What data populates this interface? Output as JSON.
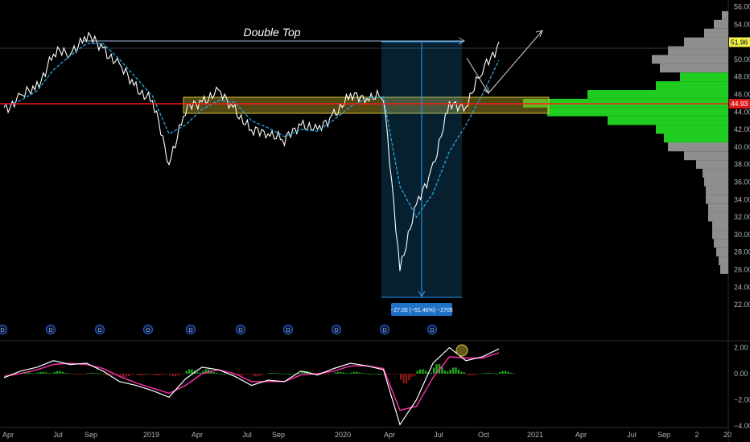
{
  "chart_data": [
    {
      "type": "line",
      "title": "",
      "annotation_title": "Double Top",
      "colors": {
        "price": "#ffffff",
        "moving_average": "#2aa7e0",
        "support_line": "#ff1a1a",
        "resistance_zone": "#b5a22a",
        "measure_box": "#1e90d6",
        "volume_up": "#22dd22",
        "volume_down": "#9a9a9a"
      },
      "x_ticks": [
        "Apr",
        "Jul",
        "Sep",
        "2019",
        "Apr",
        "Jul",
        "Sep",
        "2020",
        "Apr",
        "Jul",
        "Oct",
        "2021",
        "Apr",
        "Jul",
        "Sep",
        "2",
        "20"
      ],
      "y_ticks": [
        "56.00",
        "54.00",
        "52.00",
        "50.00",
        "48.00",
        "46.00",
        "44.00",
        "42.00",
        "40.00",
        "38.00",
        "36.00",
        "34.00",
        "32.00",
        "30.00",
        "28.00",
        "26.00",
        "24.00",
        "22.00"
      ],
      "ylim": [
        21,
        57
      ],
      "x": [
        "2018-03",
        "2018-04",
        "2018-05",
        "2018-06",
        "2018-07",
        "2018-08",
        "2018-09",
        "2018-10",
        "2018-11",
        "2018-12",
        "2019-01",
        "2019-02",
        "2019-03",
        "2019-04",
        "2019-05",
        "2019-06",
        "2019-07",
        "2019-08",
        "2019-09",
        "2019-10",
        "2019-11",
        "2019-12",
        "2020-01",
        "2020-02",
        "2020-03",
        "2020-04",
        "2020-05",
        "2020-06",
        "2020-07",
        "2020-08",
        "2020-09"
      ],
      "series": [
        {
          "values": [
            44.5,
            45.5,
            47,
            50.5,
            51,
            52.5,
            51.5,
            49,
            47,
            45,
            38.5,
            44,
            45.5,
            46,
            44.5,
            41.5,
            42,
            40.5,
            43,
            41.5,
            44,
            45.5,
            46,
            45.5,
            26.5,
            33,
            38,
            44.5,
            45,
            48.5,
            52
          ]
        },
        {
          "values": [
            44.7,
            45.3,
            46.4,
            48.8,
            50.4,
            51.8,
            51.8,
            50.0,
            47.9,
            45.8,
            41.5,
            42.5,
            44.3,
            45.3,
            45.1,
            43.0,
            42.2,
            41.2,
            42.0,
            41.8,
            43.1,
            44.6,
            45.6,
            45.7,
            35.5,
            32.0,
            34.7,
            39.5,
            42.5,
            46.0,
            49.9
          ]
        }
      ],
      "current_price": "51.96",
      "support_price": "44.93",
      "measure_label": "−27.05 (−51.46%) −2705",
      "dividend_marker": "D",
      "volume_profile": [
        {
          "price": 55,
          "vol": 8,
          "up": false
        },
        {
          "price": 54,
          "vol": 18,
          "up": false
        },
        {
          "price": 53,
          "vol": 30,
          "up": false
        },
        {
          "price": 52,
          "vol": 55,
          "up": false
        },
        {
          "price": 51,
          "vol": 75,
          "up": false
        },
        {
          "price": 50,
          "vol": 95,
          "up": false
        },
        {
          "price": 49,
          "vol": 85,
          "up": false
        },
        {
          "price": 48,
          "vol": 60,
          "up": true
        },
        {
          "price": 47,
          "vol": 90,
          "up": true
        },
        {
          "price": 46,
          "vol": 175,
          "up": true
        },
        {
          "price": 45,
          "vol": 255,
          "up": true
        },
        {
          "price": 44,
          "vol": 225,
          "up": true
        },
        {
          "price": 43,
          "vol": 150,
          "up": true
        },
        {
          "price": 42,
          "vol": 90,
          "up": true
        },
        {
          "price": 41,
          "vol": 80,
          "up": true
        },
        {
          "price": 40,
          "vol": 75,
          "up": false
        },
        {
          "price": 39,
          "vol": 55,
          "up": false
        },
        {
          "price": 38,
          "vol": 40,
          "up": false
        },
        {
          "price": 37,
          "vol": 32,
          "up": false
        },
        {
          "price": 36,
          "vol": 30,
          "up": false
        },
        {
          "price": 35,
          "vol": 28,
          "up": false
        },
        {
          "price": 34,
          "vol": 28,
          "up": false
        },
        {
          "price": 33,
          "vol": 25,
          "up": false
        },
        {
          "price": 32,
          "vol": 25,
          "up": false
        },
        {
          "price": 31,
          "vol": 20,
          "up": false
        },
        {
          "price": 30,
          "vol": 20,
          "up": false
        },
        {
          "price": 29,
          "vol": 18,
          "up": false
        },
        {
          "price": 28,
          "vol": 15,
          "up": false
        },
        {
          "price": 27,
          "vol": 12,
          "up": false
        },
        {
          "price": 26,
          "vol": 10,
          "up": false
        }
      ]
    },
    {
      "type": "line",
      "title": "",
      "y_ticks": [
        "2.00",
        "0.00",
        "−2.00",
        "−4.00"
      ],
      "ylim": [
        -4,
        2.6
      ],
      "colors": {
        "macd": "#ffffff",
        "signal": "#ff2fa8",
        "hist_up": "#22aa22",
        "hist_down": "#8b1a1a"
      },
      "x": [
        "2018-03",
        "2018-04",
        "2018-05",
        "2018-06",
        "2018-07",
        "2018-08",
        "2018-09",
        "2018-10",
        "2018-11",
        "2018-12",
        "2019-01",
        "2019-02",
        "2019-03",
        "2019-04",
        "2019-05",
        "2019-06",
        "2019-07",
        "2019-08",
        "2019-09",
        "2019-10",
        "2019-11",
        "2019-12",
        "2020-01",
        "2020-02",
        "2020-03",
        "2020-04",
        "2020-05",
        "2020-06",
        "2020-07",
        "2020-08",
        "2020-09"
      ],
      "series": [
        {
          "values": [
            -0.3,
            0.2,
            0.5,
            1.0,
            0.7,
            0.8,
            0.2,
            -0.6,
            -0.9,
            -1.3,
            -1.8,
            -0.4,
            0.5,
            0.3,
            -0.2,
            -0.9,
            -0.5,
            -0.6,
            0.2,
            -0.1,
            0.4,
            0.8,
            0.6,
            0.3,
            -3.9,
            -2.0,
            0.8,
            2.0,
            1.0,
            1.3,
            1.9
          ]
        },
        {
          "values": [
            -0.2,
            0.0,
            0.3,
            0.7,
            0.8,
            0.7,
            0.4,
            -0.2,
            -0.7,
            -1.1,
            -1.5,
            -0.9,
            0.0,
            0.3,
            0.0,
            -0.6,
            -0.6,
            -0.6,
            -0.1,
            0.0,
            0.2,
            0.6,
            0.6,
            0.4,
            -2.8,
            -2.5,
            -0.3,
            1.3,
            1.2,
            1.2,
            1.6
          ]
        }
      ]
    }
  ]
}
